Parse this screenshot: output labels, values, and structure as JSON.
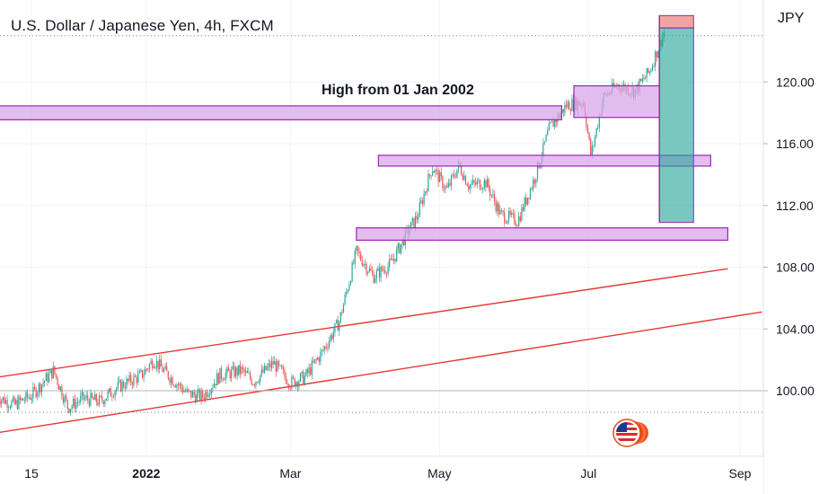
{
  "title": "U.S. Dollar / Japanese Yen, 4h, FXCM",
  "axis_unit": "JPY",
  "annotation": "High from 01 Jan 2002",
  "colors": {
    "up_candle": "#26a69a",
    "down_candle": "#ef5350",
    "zone_fill": "#d8a8e8",
    "zone_border": "#9c27b0",
    "trendline": "#e53935",
    "profit_fill": "#26a69a",
    "stop_fill": "#ef9a9a"
  },
  "icons": {
    "logo": "us-flag-logo-icon"
  },
  "chart_data": {
    "type": "candlestick",
    "y_ticks": [
      "120.00",
      "116.00",
      "112.00",
      "108.00",
      "104.00",
      "100.00"
    ],
    "ylim": [
      97,
      124.3
    ],
    "x_ticks": [
      {
        "label": "15",
        "date": "2021-11-15",
        "bold": false
      },
      {
        "label": "2022",
        "date": "2022-01-01",
        "bold": true
      },
      {
        "label": "Mar",
        "date": "2022-03-01",
        "bold": false
      },
      {
        "label": "May",
        "date": "2022-05-01",
        "bold": false
      },
      {
        "label": "Jul",
        "date": "2022-07-01",
        "bold": false
      },
      {
        "label": "Sep",
        "date": "2022-09-01",
        "bold": false
      }
    ],
    "price_path": [
      [
        "2021-11-01",
        99.6
      ],
      [
        "2021-11-08",
        99.1
      ],
      [
        "2021-11-15",
        99.7
      ],
      [
        "2021-11-24",
        101.3
      ],
      [
        "2021-11-30",
        98.9
      ],
      [
        "2021-12-06",
        99.5
      ],
      [
        "2021-12-13",
        99.3
      ],
      [
        "2021-12-20",
        100.2
      ],
      [
        "2021-12-30",
        101.0
      ],
      [
        "2022-01-04",
        102.0
      ],
      [
        "2022-01-10",
        101.0
      ],
      [
        "2022-01-18",
        99.8
      ],
      [
        "2022-01-24",
        99.6
      ],
      [
        "2022-01-31",
        101.0
      ],
      [
        "2022-02-09",
        101.3
      ],
      [
        "2022-02-14",
        100.6
      ],
      [
        "2022-02-22",
        101.8
      ],
      [
        "2022-03-01",
        100.5
      ],
      [
        "2022-03-07",
        100.9
      ],
      [
        "2022-03-14",
        102.5
      ],
      [
        "2022-03-21",
        104.5
      ],
      [
        "2022-03-28",
        109.0
      ],
      [
        "2022-04-04",
        107.4
      ],
      [
        "2022-04-11",
        108.2
      ],
      [
        "2022-04-18",
        110.3
      ],
      [
        "2022-04-22",
        111.3
      ],
      [
        "2022-04-28",
        114.5
      ],
      [
        "2022-05-04",
        113.0
      ],
      [
        "2022-05-09",
        114.6
      ],
      [
        "2022-05-13",
        113.3
      ],
      [
        "2022-05-20",
        113.5
      ],
      [
        "2022-05-26",
        111.4
      ],
      [
        "2022-06-02",
        111.0
      ],
      [
        "2022-06-09",
        113.8
      ],
      [
        "2022-06-15",
        117.0
      ],
      [
        "2022-06-22",
        118.5
      ],
      [
        "2022-06-29",
        118.7
      ],
      [
        "2022-07-02",
        115.2
      ],
      [
        "2022-07-07",
        119.0
      ],
      [
        "2022-07-13",
        119.8
      ],
      [
        "2022-07-20",
        119.4
      ],
      [
        "2022-07-26",
        120.7
      ],
      [
        "2022-08-01",
        123.3
      ]
    ],
    "horizontal_lines": [
      {
        "price": 123.0,
        "style": "dotted"
      },
      {
        "price": 100.0,
        "style": "solid"
      },
      {
        "price": 98.6,
        "style": "dotted"
      }
    ],
    "zones": [
      {
        "x_from": "2021-10-29",
        "x_to": "2022-06-20",
        "top": 118.45,
        "bottom": 117.55
      },
      {
        "x_from": "2022-06-25",
        "x_to": "2022-07-30",
        "top": 119.75,
        "bottom": 117.7
      },
      {
        "x_from": "2022-04-06",
        "x_to": "2022-08-20",
        "top": 115.25,
        "bottom": 114.55
      },
      {
        "x_from": "2022-03-28",
        "x_to": "2022-08-27",
        "top": 110.55,
        "bottom": 109.75
      }
    ],
    "trendlines": [
      {
        "from": [
          "2021-10-29",
          100.8
        ],
        "to": [
          "2022-08-27",
          107.9
        ]
      },
      {
        "from": [
          "2021-10-29",
          97.2
        ],
        "to": [
          "2022-09-10",
          105.1
        ]
      }
    ],
    "position_tool": {
      "x_from": "2022-07-30",
      "x_to": "2022-08-13",
      "stop_top": 124.3,
      "entry": 123.5,
      "target": 110.9
    }
  }
}
